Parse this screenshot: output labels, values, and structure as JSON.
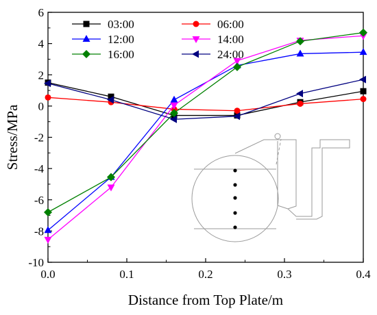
{
  "chart_data": {
    "type": "line",
    "title": "",
    "xlabel": "Distance from Top Plate/m",
    "ylabel": "Stress/MPa",
    "xlim": [
      0.0,
      0.4
    ],
    "ylim": [
      -10,
      6
    ],
    "x_ticks": [
      0.0,
      0.1,
      0.2,
      0.3,
      0.4
    ],
    "x_tick_labels": [
      "0.0",
      "0.1",
      "0.2",
      "0.3",
      "0.4"
    ],
    "y_ticks": [
      -10,
      -8,
      -6,
      -4,
      -2,
      0,
      2,
      4,
      6
    ],
    "y_tick_labels": [
      "-10",
      "-8",
      "-6",
      "-4",
      "-2",
      "0",
      "2",
      "4",
      "6"
    ],
    "grid": false,
    "legend_position": "top-left",
    "x": [
      0.0,
      0.08,
      0.16,
      0.24,
      0.32,
      0.4
    ],
    "series": [
      {
        "name": "03:00",
        "color": "#000000",
        "marker": "square",
        "values": [
          1.5,
          0.6,
          -0.6,
          -0.6,
          0.25,
          0.95
        ]
      },
      {
        "name": "06:00",
        "color": "#ff0000",
        "marker": "circle",
        "values": [
          0.55,
          0.25,
          -0.2,
          -0.3,
          0.15,
          0.45
        ]
      },
      {
        "name": "12:00",
        "color": "#0000ff",
        "marker": "triangle-up",
        "values": [
          -7.95,
          -4.55,
          0.4,
          2.6,
          3.35,
          3.45
        ]
      },
      {
        "name": "14:00",
        "color": "#ff00ff",
        "marker": "triangle-down",
        "values": [
          -8.55,
          -5.2,
          0.05,
          2.9,
          4.2,
          4.5
        ]
      },
      {
        "name": "16:00",
        "color": "#008000",
        "marker": "diamond",
        "values": [
          -6.8,
          -4.55,
          -0.45,
          2.5,
          4.15,
          4.7
        ]
      },
      {
        "name": "24:00",
        "color": "#000080",
        "marker": "triangle-left",
        "values": [
          1.45,
          0.4,
          -0.85,
          -0.65,
          0.8,
          1.7
        ]
      }
    ]
  }
}
